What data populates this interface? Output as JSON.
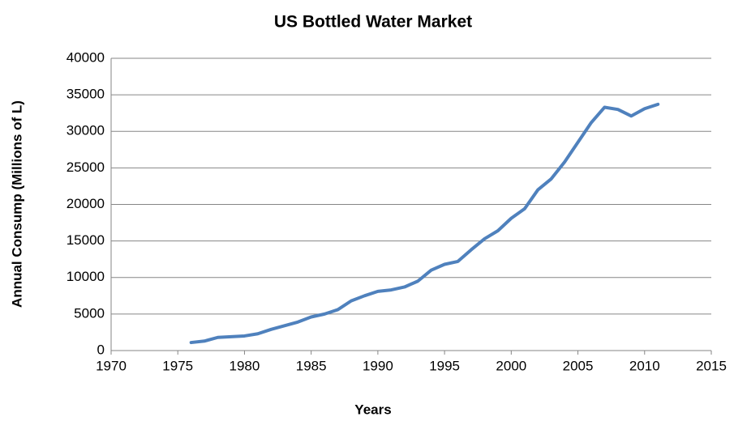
{
  "chart_data": {
    "type": "line",
    "title": "US Bottled Water Market",
    "x_label": "Years",
    "y_label": "Annual Consump (Millions of L)",
    "x": [
      1976,
      1977,
      1978,
      1979,
      1980,
      1981,
      1982,
      1983,
      1984,
      1985,
      1986,
      1987,
      1988,
      1989,
      1990,
      1991,
      1992,
      1993,
      1994,
      1995,
      1996,
      1997,
      1998,
      1999,
      2000,
      2001,
      2002,
      2003,
      2004,
      2005,
      2006,
      2007,
      2008,
      2009,
      2010,
      2011
    ],
    "series": [
      {
        "name": "US Bottled Water",
        "color": "#4f81bd",
        "values": [
          1100,
          1300,
          1800,
          1900,
          2000,
          2300,
          2900,
          3400,
          3900,
          4600,
          5000,
          5600,
          6800,
          7500,
          8100,
          8300,
          8700,
          9500,
          11000,
          11800,
          12200,
          13800,
          15300,
          16400,
          18100,
          19400,
          22000,
          23500,
          25800,
          28500,
          31200,
          33300,
          33000,
          32100,
          33100,
          33700
        ]
      }
    ],
    "xlim": [
      1970,
      2015
    ],
    "xticks": [
      1970,
      1975,
      1980,
      1985,
      1990,
      1995,
      2000,
      2005,
      2010,
      2015
    ],
    "ylim": [
      0,
      40000
    ],
    "yticks": [
      0,
      5000,
      10000,
      15000,
      20000,
      25000,
      30000,
      35000,
      40000
    ],
    "grid": true
  }
}
